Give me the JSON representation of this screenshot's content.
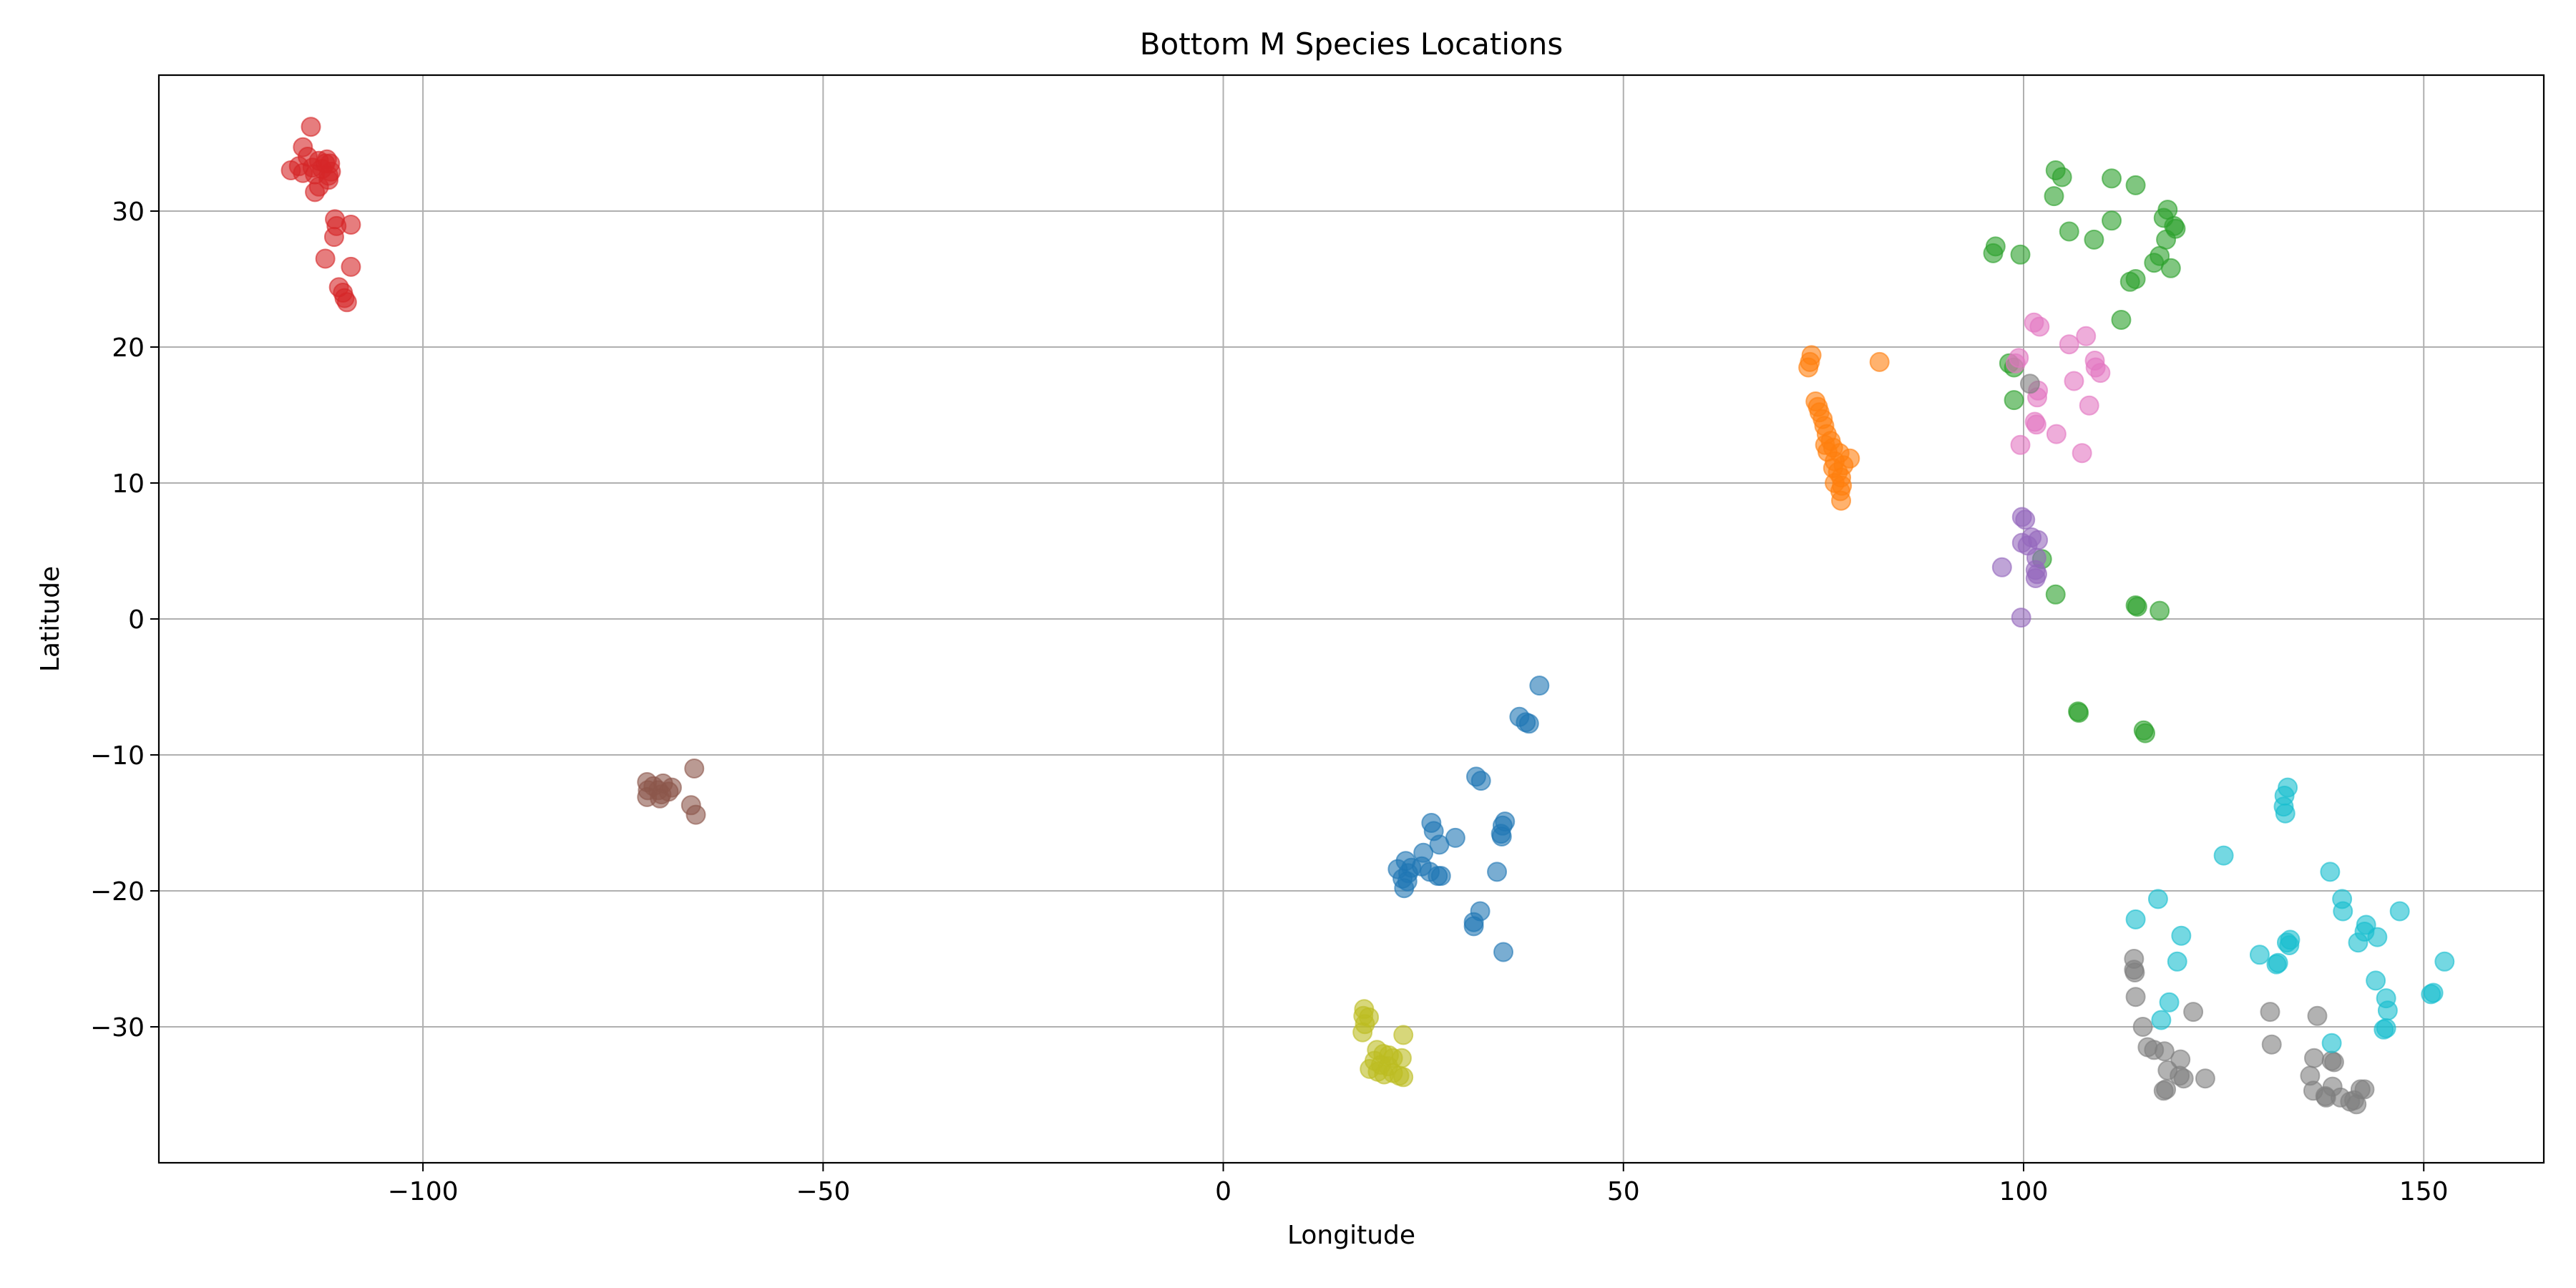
{
  "chart_data": {
    "type": "scatter",
    "title": "Bottom M Species Locations",
    "xlabel": "Longitude",
    "ylabel": "Latitude",
    "xlim": [
      -133,
      165
    ],
    "ylim": [
      -40,
      40
    ],
    "xticks": [
      -100,
      -50,
      0,
      50,
      100,
      150
    ],
    "xtick_labels": [
      "−100",
      "−50",
      "0",
      "50",
      "100",
      "150"
    ],
    "yticks": [
      -30,
      -20,
      -10,
      0,
      10,
      20,
      30
    ],
    "ytick_labels": [
      "−30",
      "−20",
      "−10",
      "0",
      "10",
      "20",
      "30"
    ],
    "grid": true,
    "legend": "none",
    "series": [
      {
        "color": "#1f77b4",
        "points": [
          [
            39.5,
            -4.9
          ],
          [
            37.0,
            -7.2
          ],
          [
            37.8,
            -7.6
          ],
          [
            38.2,
            -7.7
          ],
          [
            31.6,
            -11.6
          ],
          [
            32.2,
            -11.9
          ],
          [
            26.0,
            -15.0
          ],
          [
            35.2,
            -14.9
          ],
          [
            34.9,
            -15.2
          ],
          [
            26.3,
            -15.6
          ],
          [
            34.7,
            -15.8
          ],
          [
            34.8,
            -16.0
          ],
          [
            29.0,
            -16.1
          ],
          [
            27.0,
            -16.6
          ],
          [
            25.0,
            -17.2
          ],
          [
            22.8,
            -17.8
          ],
          [
            23.5,
            -18.3
          ],
          [
            21.8,
            -18.4
          ],
          [
            24.8,
            -18.2
          ],
          [
            25.8,
            -18.6
          ],
          [
            23.1,
            -18.7
          ],
          [
            27.2,
            -18.9
          ],
          [
            34.2,
            -18.6
          ],
          [
            26.8,
            -18.9
          ],
          [
            22.4,
            -19.1
          ],
          [
            23.0,
            -19.3
          ],
          [
            22.6,
            -19.8
          ],
          [
            32.1,
            -21.5
          ],
          [
            31.3,
            -22.3
          ],
          [
            31.3,
            -22.6
          ],
          [
            35.0,
            -24.5
          ]
        ]
      },
      {
        "color": "#ff7f0e",
        "points": [
          [
            73.5,
            19.4
          ],
          [
            73.3,
            18.9
          ],
          [
            73.1,
            18.5
          ],
          [
            82.0,
            18.9
          ],
          [
            74.0,
            16.0
          ],
          [
            74.3,
            15.6
          ],
          [
            74.5,
            15.2
          ],
          [
            74.9,
            14.7
          ],
          [
            75.1,
            14.2
          ],
          [
            75.4,
            13.6
          ],
          [
            75.9,
            13.1
          ],
          [
            75.2,
            12.8
          ],
          [
            76.2,
            12.6
          ],
          [
            75.5,
            12.3
          ],
          [
            77.0,
            12.2
          ],
          [
            78.3,
            11.8
          ],
          [
            76.4,
            11.6
          ],
          [
            77.5,
            11.3
          ],
          [
            76.2,
            11.1
          ],
          [
            76.8,
            10.8
          ],
          [
            77.2,
            10.4
          ],
          [
            76.4,
            10.0
          ],
          [
            77.3,
            9.8
          ],
          [
            77.1,
            9.4
          ],
          [
            77.2,
            8.7
          ]
        ]
      },
      {
        "color": "#2ca02c",
        "points": [
          [
            104.0,
            33.0
          ],
          [
            104.8,
            32.5
          ],
          [
            111.0,
            32.4
          ],
          [
            114.0,
            31.9
          ],
          [
            103.8,
            31.1
          ],
          [
            118.0,
            30.1
          ],
          [
            117.5,
            29.5
          ],
          [
            111.0,
            29.3
          ],
          [
            118.8,
            28.9
          ],
          [
            119.0,
            28.7
          ],
          [
            105.7,
            28.5
          ],
          [
            108.8,
            27.9
          ],
          [
            117.8,
            27.9
          ],
          [
            96.5,
            27.4
          ],
          [
            96.2,
            26.9
          ],
          [
            99.6,
            26.8
          ],
          [
            117.0,
            26.7
          ],
          [
            116.3,
            26.2
          ],
          [
            118.4,
            25.8
          ],
          [
            114.0,
            25.0
          ],
          [
            113.3,
            24.8
          ],
          [
            112.2,
            22.0
          ],
          [
            98.2,
            18.8
          ],
          [
            98.8,
            18.5
          ],
          [
            98.8,
            16.1
          ],
          [
            102.3,
            4.4
          ],
          [
            104.0,
            1.8
          ],
          [
            114.0,
            1.0
          ],
          [
            114.2,
            0.9
          ],
          [
            117.0,
            0.6
          ],
          [
            106.8,
            -6.8
          ],
          [
            106.9,
            -6.9
          ],
          [
            115.0,
            -8.2
          ],
          [
            115.2,
            -8.4
          ]
        ]
      },
      {
        "color": "#d62728",
        "points": [
          [
            -114.0,
            36.2
          ],
          [
            -115.0,
            34.7
          ],
          [
            -114.4,
            34.0
          ],
          [
            -112.0,
            33.8
          ],
          [
            -113.0,
            33.7
          ],
          [
            -112.2,
            33.5
          ],
          [
            -115.5,
            33.3
          ],
          [
            -116.5,
            33.0
          ],
          [
            -113.8,
            33.2
          ],
          [
            -112.6,
            33.1
          ],
          [
            -111.6,
            33.5
          ],
          [
            -111.5,
            32.9
          ],
          [
            -111.8,
            32.6
          ],
          [
            -111.8,
            32.3
          ],
          [
            -113.5,
            32.7
          ],
          [
            -115.0,
            32.8
          ],
          [
            -113.0,
            31.8
          ],
          [
            -113.5,
            31.4
          ],
          [
            -111.0,
            29.4
          ],
          [
            -110.8,
            28.9
          ],
          [
            -109.0,
            29.0
          ],
          [
            -111.1,
            28.1
          ],
          [
            -112.2,
            26.5
          ],
          [
            -109.0,
            25.9
          ],
          [
            -110.5,
            24.4
          ],
          [
            -110.0,
            24.0
          ],
          [
            -109.8,
            23.6
          ],
          [
            -109.5,
            23.3
          ]
        ]
      },
      {
        "color": "#9467bd",
        "points": [
          [
            99.8,
            7.5
          ],
          [
            100.2,
            7.3
          ],
          [
            101.0,
            6.0
          ],
          [
            101.8,
            5.8
          ],
          [
            99.8,
            5.6
          ],
          [
            100.5,
            5.4
          ],
          [
            101.6,
            4.5
          ],
          [
            101.5,
            3.6
          ],
          [
            101.7,
            3.3
          ],
          [
            101.5,
            3.0
          ],
          [
            97.3,
            3.8
          ],
          [
            99.7,
            0.1
          ]
        ]
      },
      {
        "color": "#8c564b",
        "points": [
          [
            -66.1,
            -11.0
          ],
          [
            -72.0,
            -12.0
          ],
          [
            -71.2,
            -12.3
          ],
          [
            -70.0,
            -12.1
          ],
          [
            -68.9,
            -12.4
          ],
          [
            -70.6,
            -12.6
          ],
          [
            -71.9,
            -12.6
          ],
          [
            -69.3,
            -12.7
          ],
          [
            -70.2,
            -12.9
          ],
          [
            -72.0,
            -13.1
          ],
          [
            -70.4,
            -13.2
          ],
          [
            -66.5,
            -13.7
          ],
          [
            -65.9,
            -14.4
          ]
        ]
      },
      {
        "color": "#e377c2",
        "points": [
          [
            101.3,
            21.8
          ],
          [
            102.0,
            21.5
          ],
          [
            107.8,
            20.8
          ],
          [
            105.7,
            20.2
          ],
          [
            99.4,
            19.2
          ],
          [
            99.0,
            18.8
          ],
          [
            108.9,
            19.0
          ],
          [
            109.0,
            18.5
          ],
          [
            109.6,
            18.1
          ],
          [
            101.8,
            16.8
          ],
          [
            101.7,
            16.3
          ],
          [
            106.3,
            17.5
          ],
          [
            108.2,
            15.7
          ],
          [
            101.4,
            14.5
          ],
          [
            101.6,
            14.3
          ],
          [
            104.1,
            13.6
          ],
          [
            99.6,
            12.8
          ],
          [
            107.3,
            12.2
          ]
        ]
      },
      {
        "color": "#7f7f7f",
        "points": [
          [
            100.8,
            17.3
          ],
          [
            113.8,
            -25.0
          ],
          [
            113.8,
            -25.8
          ],
          [
            113.9,
            -26.0
          ],
          [
            114.0,
            -27.8
          ],
          [
            121.2,
            -28.9
          ],
          [
            130.8,
            -28.9
          ],
          [
            136.7,
            -29.2
          ],
          [
            114.9,
            -30.0
          ],
          [
            116.3,
            -31.7
          ],
          [
            117.6,
            -31.8
          ],
          [
            115.5,
            -31.5
          ],
          [
            131.0,
            -31.3
          ],
          [
            119.6,
            -32.4
          ],
          [
            138.5,
            -32.5
          ],
          [
            138.8,
            -32.6
          ],
          [
            136.3,
            -32.3
          ],
          [
            118.0,
            -33.2
          ],
          [
            119.5,
            -33.6
          ],
          [
            120.0,
            -33.8
          ],
          [
            122.7,
            -33.8
          ],
          [
            135.8,
            -33.6
          ],
          [
            138.6,
            -34.4
          ],
          [
            142.1,
            -34.6
          ],
          [
            142.6,
            -34.6
          ],
          [
            117.5,
            -34.7
          ],
          [
            117.8,
            -34.6
          ],
          [
            136.2,
            -34.7
          ],
          [
            137.7,
            -35.1
          ],
          [
            139.6,
            -35.2
          ],
          [
            140.8,
            -35.5
          ],
          [
            141.6,
            -35.7
          ],
          [
            137.8,
            -35.2
          ],
          [
            141.3,
            -35.4
          ]
        ]
      },
      {
        "color": "#bcbd22",
        "points": [
          [
            17.6,
            -28.7
          ],
          [
            17.5,
            -29.2
          ],
          [
            18.2,
            -29.3
          ],
          [
            17.7,
            -29.8
          ],
          [
            17.4,
            -30.4
          ],
          [
            22.5,
            -30.6
          ],
          [
            19.2,
            -31.7
          ],
          [
            20.0,
            -32.0
          ],
          [
            20.7,
            -32.1
          ],
          [
            21.2,
            -32.3
          ],
          [
            22.3,
            -32.3
          ],
          [
            18.9,
            -32.5
          ],
          [
            19.7,
            -32.8
          ],
          [
            20.6,
            -32.9
          ],
          [
            18.3,
            -33.1
          ],
          [
            19.3,
            -33.3
          ],
          [
            20.1,
            -33.5
          ],
          [
            21.2,
            -33.4
          ],
          [
            22.0,
            -33.6
          ],
          [
            22.5,
            -33.7
          ]
        ]
      },
      {
        "color": "#17becf",
        "points": [
          [
            133.0,
            -12.4
          ],
          [
            132.6,
            -13.0
          ],
          [
            132.5,
            -13.8
          ],
          [
            132.7,
            -14.3
          ],
          [
            125.0,
            -17.4
          ],
          [
            138.3,
            -18.6
          ],
          [
            116.8,
            -20.6
          ],
          [
            139.8,
            -20.6
          ],
          [
            139.9,
            -21.5
          ],
          [
            147.0,
            -21.5
          ],
          [
            114.0,
            -22.1
          ],
          [
            142.8,
            -22.5
          ],
          [
            142.6,
            -23.0
          ],
          [
            119.7,
            -23.3
          ],
          [
            144.2,
            -23.4
          ],
          [
            133.3,
            -23.6
          ],
          [
            132.9,
            -23.8
          ],
          [
            133.2,
            -24.0
          ],
          [
            141.8,
            -23.8
          ],
          [
            129.5,
            -24.7
          ],
          [
            131.8,
            -25.3
          ],
          [
            131.6,
            -25.4
          ],
          [
            152.6,
            -25.2
          ],
          [
            119.2,
            -25.2
          ],
          [
            144.0,
            -26.6
          ],
          [
            150.9,
            -27.6
          ],
          [
            151.2,
            -27.5
          ],
          [
            145.3,
            -27.9
          ],
          [
            145.5,
            -28.8
          ],
          [
            118.2,
            -28.2
          ],
          [
            117.2,
            -29.5
          ],
          [
            145.3,
            -30.1
          ],
          [
            145.0,
            -30.2
          ],
          [
            138.5,
            -31.2
          ]
        ]
      }
    ]
  }
}
